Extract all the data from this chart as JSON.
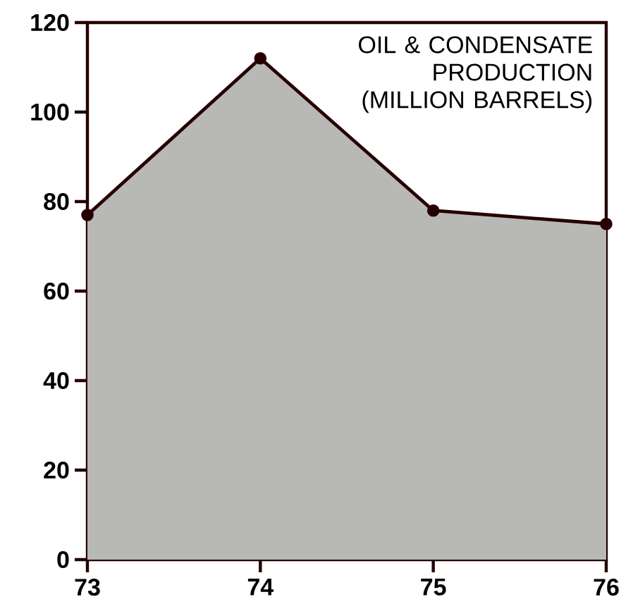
{
  "chart_data": {
    "type": "area",
    "title": "OIL & CONDENSATE PRODUCTION (MILLION BARRELS)",
    "x": [
      73,
      74,
      75,
      76
    ],
    "series": [
      {
        "color": "#b8b8b4",
        "values": [
          77,
          112,
          78,
          75
        ]
      }
    ],
    "xlim": [
      73,
      76
    ],
    "xticks": [
      73,
      74,
      75,
      76
    ],
    "ylim": [
      0,
      120
    ],
    "yticks": [
      0,
      20,
      40,
      60,
      80,
      100,
      120
    ],
    "marker": "circle",
    "line_style": "solid",
    "grid": false
  }
}
